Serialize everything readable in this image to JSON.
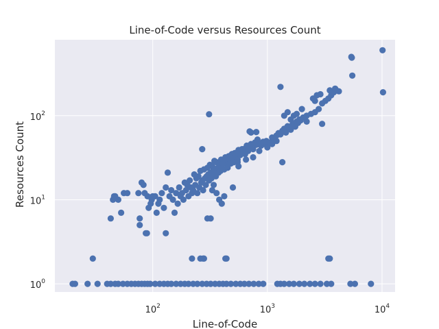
{
  "chart_data": {
    "type": "scatter",
    "title": "Line-of-Code versus Resources Count",
    "xlabel": "Line-of-Code",
    "ylabel": "Resources Count",
    "xscale": "log",
    "yscale": "log",
    "xlim": [
      14,
      13000
    ],
    "ylim": [
      0.8,
      800
    ],
    "grid": true,
    "legend": "none",
    "colors": {
      "background": "#EAEAF2",
      "grid": "#FFFFFF",
      "marker": "#4C72B0"
    },
    "x_ticks": [
      {
        "value": 100,
        "base": "10",
        "exp": "2"
      },
      {
        "value": 1000,
        "base": "10",
        "exp": "3"
      },
      {
        "value": 10000,
        "base": "10",
        "exp": "4"
      }
    ],
    "y_ticks": [
      {
        "value": 1,
        "base": "10",
        "exp": "0"
      },
      {
        "value": 10,
        "base": "10",
        "exp": "1"
      },
      {
        "value": 100,
        "base": "10",
        "exp": "2"
      }
    ],
    "points": [
      [
        20,
        1
      ],
      [
        21,
        1
      ],
      [
        27,
        1
      ],
      [
        30,
        2
      ],
      [
        33,
        1
      ],
      [
        40,
        1
      ],
      [
        43,
        1
      ],
      [
        47,
        1
      ],
      [
        50,
        1
      ],
      [
        55,
        1
      ],
      [
        60,
        1
      ],
      [
        65,
        1
      ],
      [
        70,
        1
      ],
      [
        75,
        1
      ],
      [
        80,
        1
      ],
      [
        85,
        1
      ],
      [
        90,
        1
      ],
      [
        95,
        1
      ],
      [
        105,
        1
      ],
      [
        115,
        1
      ],
      [
        125,
        1
      ],
      [
        135,
        1
      ],
      [
        145,
        1
      ],
      [
        160,
        1
      ],
      [
        175,
        1
      ],
      [
        190,
        1
      ],
      [
        205,
        1
      ],
      [
        225,
        1
      ],
      [
        245,
        1
      ],
      [
        270,
        1
      ],
      [
        295,
        1
      ],
      [
        320,
        1
      ],
      [
        350,
        1
      ],
      [
        380,
        1
      ],
      [
        410,
        1
      ],
      [
        440,
        1
      ],
      [
        480,
        1
      ],
      [
        530,
        1
      ],
      [
        580,
        1
      ],
      [
        630,
        1
      ],
      [
        690,
        1
      ],
      [
        760,
        1
      ],
      [
        840,
        1
      ],
      [
        920,
        1
      ],
      [
        1220,
        1
      ],
      [
        1300,
        1
      ],
      [
        1400,
        1
      ],
      [
        1550,
        1
      ],
      [
        1700,
        1
      ],
      [
        1900,
        1
      ],
      [
        2100,
        1
      ],
      [
        2350,
        1
      ],
      [
        2600,
        1
      ],
      [
        2900,
        1
      ],
      [
        3300,
        1
      ],
      [
        3600,
        1
      ],
      [
        5300,
        1
      ],
      [
        5800,
        1
      ],
      [
        8000,
        1
      ],
      [
        43,
        6
      ],
      [
        45,
        10
      ],
      [
        47,
        11
      ],
      [
        50,
        10
      ],
      [
        53,
        7
      ],
      [
        56,
        12
      ],
      [
        60,
        12
      ],
      [
        46,
        11
      ],
      [
        75,
        12
      ],
      [
        77,
        5
      ],
      [
        77,
        6
      ],
      [
        80,
        16
      ],
      [
        83,
        15
      ],
      [
        85,
        12
      ],
      [
        87,
        4
      ],
      [
        89,
        4
      ],
      [
        90,
        11
      ],
      [
        92,
        8
      ],
      [
        96,
        9
      ],
      [
        98,
        10
      ],
      [
        100,
        11
      ],
      [
        105,
        11
      ],
      [
        108,
        7
      ],
      [
        112,
        9
      ],
      [
        115,
        10
      ],
      [
        120,
        12
      ],
      [
        125,
        8
      ],
      [
        130,
        4
      ],
      [
        130,
        14
      ],
      [
        135,
        21
      ],
      [
        140,
        11
      ],
      [
        145,
        13
      ],
      [
        150,
        10
      ],
      [
        155,
        7
      ],
      [
        160,
        12
      ],
      [
        165,
        9
      ],
      [
        170,
        14
      ],
      [
        175,
        11
      ],
      [
        180,
        12
      ],
      [
        185,
        10
      ],
      [
        190,
        16
      ],
      [
        195,
        13
      ],
      [
        200,
        15
      ],
      [
        205,
        11
      ],
      [
        210,
        17
      ],
      [
        215,
        14
      ],
      [
        220,
        12
      ],
      [
        225,
        13
      ],
      [
        230,
        20
      ],
      [
        235,
        15
      ],
      [
        240,
        18
      ],
      [
        245,
        12
      ],
      [
        250,
        19
      ],
      [
        255,
        14
      ],
      [
        260,
        22
      ],
      [
        265,
        16
      ],
      [
        270,
        17
      ],
      [
        275,
        13
      ],
      [
        280,
        23
      ],
      [
        285,
        18
      ],
      [
        290,
        15
      ],
      [
        295,
        19
      ],
      [
        300,
        24
      ],
      [
        305,
        20
      ],
      [
        310,
        17
      ],
      [
        315,
        26
      ],
      [
        320,
        21
      ],
      [
        325,
        18
      ],
      [
        330,
        25
      ],
      [
        335,
        22
      ],
      [
        340,
        20
      ],
      [
        345,
        29
      ],
      [
        350,
        23
      ],
      [
        355,
        19
      ],
      [
        360,
        28
      ],
      [
        370,
        24
      ],
      [
        375,
        21
      ],
      [
        380,
        26
      ],
      [
        390,
        22
      ],
      [
        395,
        30
      ],
      [
        400,
        25
      ],
      [
        410,
        27
      ],
      [
        420,
        23
      ],
      [
        430,
        32
      ],
      [
        440,
        28
      ],
      [
        450,
        26
      ],
      [
        460,
        33
      ],
      [
        470,
        30
      ],
      [
        480,
        27
      ],
      [
        490,
        35
      ],
      [
        500,
        31
      ],
      [
        510,
        28
      ],
      [
        520,
        36
      ],
      [
        540,
        33
      ],
      [
        550,
        30
      ],
      [
        560,
        39
      ],
      [
        580,
        34
      ],
      [
        600,
        37
      ],
      [
        620,
        40
      ],
      [
        640,
        35
      ],
      [
        660,
        44
      ],
      [
        680,
        38
      ],
      [
        700,
        42
      ],
      [
        720,
        46
      ],
      [
        750,
        40
      ],
      [
        780,
        48
      ],
      [
        800,
        45
      ],
      [
        820,
        52
      ],
      [
        850,
        47
      ],
      [
        880,
        44
      ],
      [
        920,
        49
      ],
      [
        950,
        46
      ],
      [
        980,
        50
      ],
      [
        1050,
        48
      ],
      [
        1100,
        55
      ],
      [
        1150,
        52
      ],
      [
        1200,
        58
      ],
      [
        1250,
        62
      ],
      [
        1300,
        60
      ],
      [
        1350,
        66
      ],
      [
        1400,
        70
      ],
      [
        1450,
        63
      ],
      [
        1500,
        75
      ],
      [
        1550,
        72
      ],
      [
        1600,
        68
      ],
      [
        1650,
        78
      ],
      [
        1700,
        80
      ],
      [
        1750,
        74
      ],
      [
        1800,
        85
      ],
      [
        1850,
        82
      ],
      [
        1900,
        90
      ],
      [
        1950,
        88
      ],
      [
        2050,
        95
      ],
      [
        2200,
        100
      ],
      [
        2400,
        105
      ],
      [
        2600,
        110
      ],
      [
        2800,
        120
      ],
      [
        3000,
        140
      ],
      [
        3200,
        150
      ],
      [
        3400,
        160
      ],
      [
        3600,
        175
      ],
      [
        3800,
        190
      ],
      [
        4000,
        200
      ],
      [
        4200,
        195
      ],
      [
        5400,
        500
      ],
      [
        5450,
        490
      ],
      [
        5500,
        300
      ],
      [
        10100,
        600
      ],
      [
        10200,
        190
      ],
      [
        1300,
        220
      ],
      [
        1400,
        100
      ],
      [
        1500,
        110
      ],
      [
        2200,
        85
      ],
      [
        2600,
        150
      ],
      [
        3000,
        80
      ],
      [
        310,
        104
      ],
      [
        270,
        40
      ],
      [
        300,
        6
      ],
      [
        320,
        6
      ],
      [
        260,
        2
      ],
      [
        275,
        2
      ],
      [
        280,
        2
      ],
      [
        220,
        2
      ],
      [
        430,
        2
      ],
      [
        440,
        2
      ],
      [
        3400,
        2
      ],
      [
        3500,
        2
      ],
      [
        1350,
        28
      ],
      [
        420,
        11
      ],
      [
        400,
        9
      ],
      [
        380,
        10
      ],
      [
        360,
        12
      ],
      [
        340,
        15
      ],
      [
        330,
        13
      ],
      [
        500,
        14
      ],
      [
        450,
        24
      ],
      [
        600,
        40
      ],
      [
        700,
        65
      ],
      [
        720,
        63
      ],
      [
        800,
        64
      ],
      [
        650,
        30
      ],
      [
        550,
        28
      ],
      [
        560,
        25
      ],
      [
        750,
        32
      ],
      [
        850,
        38
      ],
      [
        1000,
        42
      ],
      [
        1100,
        46
      ],
      [
        1200,
        50
      ],
      [
        1600,
        90
      ],
      [
        1700,
        100
      ],
      [
        1800,
        105
      ],
      [
        2000,
        120
      ],
      [
        3500,
        200
      ],
      [
        3700,
        190
      ],
      [
        3900,
        210
      ],
      [
        2500,
        160
      ],
      [
        2700,
        175
      ],
      [
        2900,
        180
      ]
    ]
  }
}
